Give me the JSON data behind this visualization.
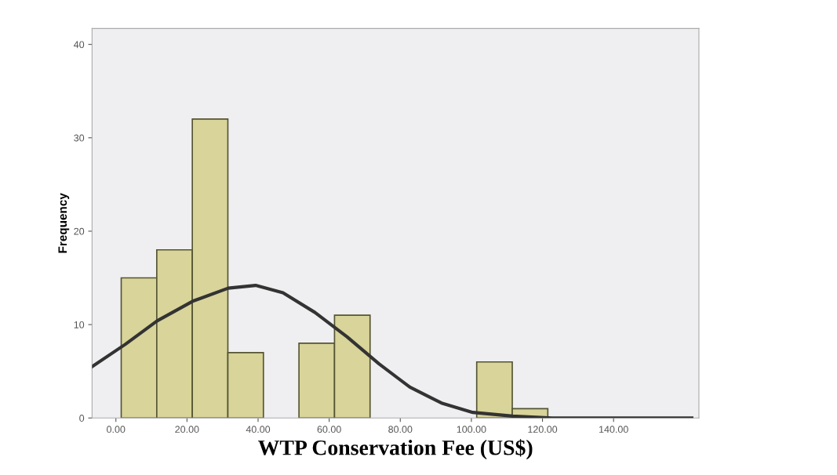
{
  "chart_data": {
    "type": "histogram",
    "xlabel": "WTP Conservation Fee (US$)",
    "ylabel": "Frequency",
    "bins": [
      1.5,
      11.5,
      21.5,
      31.5,
      41.5,
      51.5,
      61.5,
      71.5,
      81.5,
      91.5,
      101.5,
      111.5,
      121.5
    ],
    "values": [
      15,
      18,
      32,
      7,
      0,
      8,
      11,
      0,
      0,
      0,
      6,
      1
    ],
    "color": "#d8d49a",
    "series": [
      {
        "type": "line",
        "color": "#333333",
        "x": [
          -6.7,
          2.7,
          11.6,
          21.6,
          31.6,
          39.3,
          47,
          56,
          65,
          74,
          82.7,
          91.6,
          100.4,
          111.6,
          122.7,
          140,
          162
        ],
        "values": [
          5.5,
          7.9,
          10.4,
          12.5,
          13.9,
          14.2,
          13.4,
          11.3,
          8.7,
          5.8,
          3.3,
          1.6,
          0.6,
          0.2,
          0,
          0,
          0
        ]
      }
    ],
    "xlim": [
      -6.7,
      164
    ],
    "xticks": [
      {
        "value": 0,
        "label": "0.00"
      },
      {
        "value": 20,
        "label": "20.00"
      },
      {
        "value": 40,
        "label": "40.00"
      },
      {
        "value": 60,
        "label": "60.00"
      },
      {
        "value": 80,
        "label": "80.00"
      },
      {
        "value": 100,
        "label": "100.00"
      },
      {
        "value": 120,
        "label": "120.00"
      },
      {
        "value": 140,
        "label": "140.00"
      }
    ],
    "ylim": [
      0,
      41.7
    ],
    "yticks": [
      0,
      10,
      20,
      30,
      40
    ],
    "grid": false
  }
}
